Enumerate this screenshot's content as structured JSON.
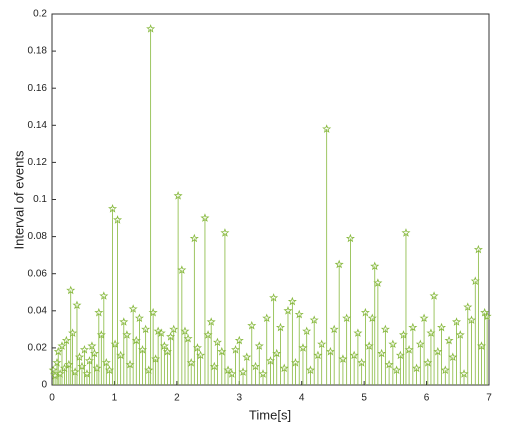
{
  "chart_data": {
    "type": "stem",
    "x_label": "Time[s]",
    "y_label": "Interval of events",
    "color": "#86b83c",
    "xlim": [
      0,
      7
    ],
    "xticks": [
      0,
      1,
      2,
      3,
      4,
      5,
      6,
      7
    ],
    "ylim": [
      0,
      0.2
    ],
    "yticks": [
      0,
      0.02,
      0.04,
      0.06,
      0.08,
      0.1,
      0.12,
      0.14,
      0.16,
      0.18,
      0.2
    ],
    "x": [
      0.02,
      0.05,
      0.08,
      0.1,
      0.13,
      0.16,
      0.2,
      0.23,
      0.27,
      0.3,
      0.33,
      0.37,
      0.4,
      0.44,
      0.48,
      0.52,
      0.56,
      0.6,
      0.64,
      0.68,
      0.72,
      0.75,
      0.79,
      0.83,
      0.87,
      0.92,
      0.97,
      1.01,
      1.05,
      1.1,
      1.15,
      1.2,
      1.25,
      1.3,
      1.35,
      1.4,
      1.45,
      1.5,
      1.55,
      1.58,
      1.62,
      1.66,
      1.7,
      1.75,
      1.8,
      1.85,
      1.9,
      1.95,
      2.02,
      2.08,
      2.13,
      2.18,
      2.23,
      2.28,
      2.33,
      2.38,
      2.45,
      2.5,
      2.55,
      2.6,
      2.65,
      2.72,
      2.77,
      2.82,
      2.88,
      2.94,
      3.0,
      3.06,
      3.12,
      3.2,
      3.26,
      3.32,
      3.38,
      3.44,
      3.5,
      3.55,
      3.6,
      3.66,
      3.72,
      3.78,
      3.85,
      3.9,
      3.96,
      4.02,
      4.08,
      4.14,
      4.2,
      4.26,
      4.32,
      4.4,
      4.46,
      4.52,
      4.6,
      4.66,
      4.72,
      4.78,
      4.84,
      4.9,
      4.96,
      5.02,
      5.08,
      5.13,
      5.17,
      5.22,
      5.28,
      5.34,
      5.4,
      5.46,
      5.52,
      5.58,
      5.63,
      5.67,
      5.72,
      5.78,
      5.84,
      5.9,
      5.96,
      6.02,
      6.07,
      6.12,
      6.18,
      6.24,
      6.3,
      6.36,
      6.42,
      6.48,
      6.54,
      6.6,
      6.66,
      6.72,
      6.78,
      6.83,
      6.88,
      6.93,
      6.97
    ],
    "values": [
      0.008,
      0.005,
      0.012,
      0.018,
      0.006,
      0.021,
      0.009,
      0.024,
      0.011,
      0.051,
      0.028,
      0.007,
      0.043,
      0.015,
      0.01,
      0.019,
      0.006,
      0.013,
      0.021,
      0.017,
      0.009,
      0.039,
      0.027,
      0.048,
      0.012,
      0.008,
      0.095,
      0.022,
      0.089,
      0.016,
      0.034,
      0.027,
      0.011,
      0.041,
      0.024,
      0.036,
      0.019,
      0.03,
      0.008,
      0.192,
      0.039,
      0.014,
      0.029,
      0.028,
      0.021,
      0.018,
      0.026,
      0.03,
      0.102,
      0.062,
      0.029,
      0.025,
      0.012,
      0.079,
      0.02,
      0.016,
      0.09,
      0.027,
      0.034,
      0.01,
      0.023,
      0.018,
      0.082,
      0.008,
      0.006,
      0.019,
      0.024,
      0.007,
      0.015,
      0.032,
      0.01,
      0.021,
      0.006,
      0.036,
      0.013,
      0.047,
      0.017,
      0.031,
      0.009,
      0.04,
      0.045,
      0.012,
      0.038,
      0.02,
      0.029,
      0.008,
      0.035,
      0.016,
      0.022,
      0.138,
      0.018,
      0.03,
      0.065,
      0.014,
      0.036,
      0.079,
      0.016,
      0.028,
      0.012,
      0.039,
      0.021,
      0.036,
      0.064,
      0.055,
      0.017,
      0.03,
      0.011,
      0.022,
      0.008,
      0.016,
      0.027,
      0.082,
      0.019,
      0.031,
      0.009,
      0.022,
      0.036,
      0.012,
      0.028,
      0.048,
      0.018,
      0.031,
      0.008,
      0.024,
      0.015,
      0.034,
      0.027,
      0.006,
      0.042,
      0.035,
      0.056,
      0.073,
      0.021,
      0.039,
      0.037
    ]
  }
}
